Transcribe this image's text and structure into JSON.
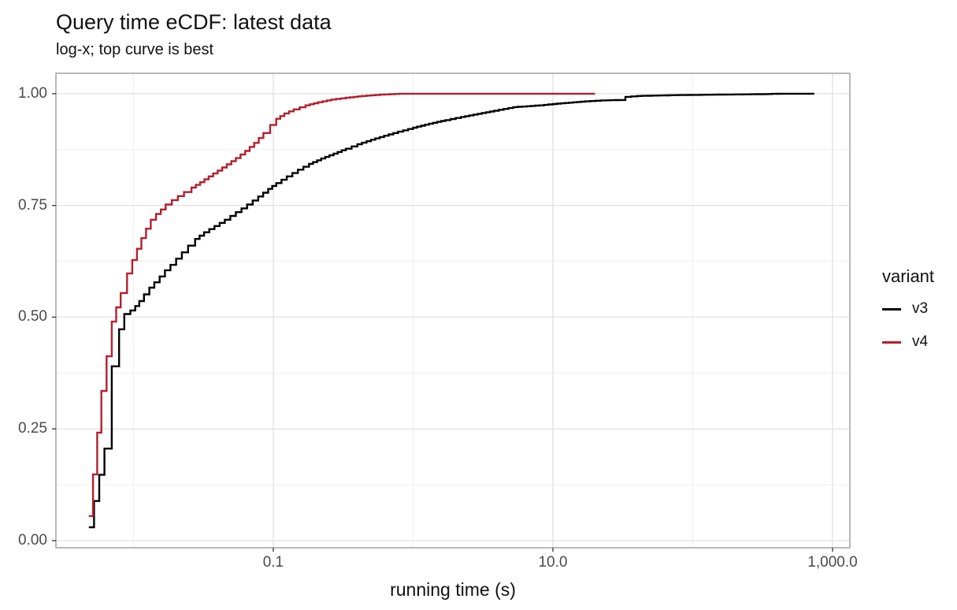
{
  "title": "Query time eCDF: latest data",
  "subtitle": "log-x; top curve is best",
  "x_axis": {
    "label": "running time (s)",
    "scale": "log10",
    "major_ticks": [
      {
        "value": 0.1,
        "label": "0.1"
      },
      {
        "value": 10,
        "label": "10.0"
      },
      {
        "value": 1000,
        "label": "1,000.0"
      }
    ],
    "minor_ticks": [
      0.01,
      1,
      100
    ],
    "range": [
      0.00279,
      1330
    ]
  },
  "y_axis": {
    "label": "",
    "major_ticks": [
      {
        "value": 0.0,
        "label": "0.00"
      },
      {
        "value": 0.25,
        "label": "0.25"
      },
      {
        "value": 0.5,
        "label": "0.50"
      },
      {
        "value": 0.75,
        "label": "0.75"
      },
      {
        "value": 1.0,
        "label": "1.00"
      }
    ],
    "minor_ticks": [
      0.125,
      0.375,
      0.625,
      0.875
    ],
    "range": [
      -0.0159,
      1.0457
    ]
  },
  "legend": {
    "title": "variant",
    "items": [
      {
        "label": "v3",
        "color": "#000000"
      },
      {
        "label": "v4",
        "color": "#b2202e"
      }
    ]
  },
  "style_colors": {
    "grid_major": "#e3e3e3",
    "grid_minor": "#efefef",
    "panel_border": "#9b9b9b",
    "tick_mark": "#333333",
    "v3_line": "#000000",
    "v4_line": "#b2202e"
  },
  "chart_data": {
    "type": "line",
    "subtype": "ecdf_step",
    "title": "Query time eCDF: latest data",
    "subtitle": "log-x; top curve is best",
    "xlabel": "running time (s)",
    "ylabel": "",
    "x_scale": "log10",
    "xlim": [
      0.00279,
      1330
    ],
    "ylim": [
      -0.0159,
      1.0457
    ],
    "grid": true,
    "legend_position": "right",
    "legend_title": "variant",
    "series": [
      {
        "name": "v3",
        "color": "#000000",
        "points": [
          [
            0.0048,
            0.03
          ],
          [
            0.0062,
            0.206
          ],
          [
            0.007,
            0.39
          ],
          [
            0.0079,
            0.473
          ],
          [
            0.0086,
            0.507
          ],
          [
            0.0095,
            0.515
          ],
          [
            0.0103,
            0.525
          ],
          [
            0.011,
            0.536
          ],
          [
            0.0119,
            0.551
          ],
          [
            0.013,
            0.566
          ],
          [
            0.0141,
            0.578
          ],
          [
            0.0154,
            0.591
          ],
          [
            0.0168,
            0.605
          ],
          [
            0.0184,
            0.617
          ],
          [
            0.0202,
            0.631
          ],
          [
            0.0222,
            0.645
          ],
          [
            0.0246,
            0.66
          ],
          [
            0.0276,
            0.675
          ],
          [
            0.032,
            0.69
          ],
          [
            0.038,
            0.704
          ],
          [
            0.045,
            0.718
          ],
          [
            0.054,
            0.735
          ],
          [
            0.065,
            0.752
          ],
          [
            0.078,
            0.77
          ],
          [
            0.092,
            0.787
          ],
          [
            0.105,
            0.8
          ],
          [
            0.125,
            0.815
          ],
          [
            0.15,
            0.83
          ],
          [
            0.18,
            0.843
          ],
          [
            0.22,
            0.855
          ],
          [
            0.27,
            0.866
          ],
          [
            0.33,
            0.877
          ],
          [
            0.4,
            0.887
          ],
          [
            0.5,
            0.897
          ],
          [
            0.62,
            0.906
          ],
          [
            0.78,
            0.915
          ],
          [
            1.0,
            0.924
          ],
          [
            1.3,
            0.933
          ],
          [
            1.7,
            0.941
          ],
          [
            2.2,
            0.948
          ],
          [
            2.9,
            0.955
          ],
          [
            3.8,
            0.962
          ],
          [
            5.2,
            0.97
          ],
          [
            6.5,
            0.972
          ],
          [
            8.0,
            0.974
          ],
          [
            10.0,
            0.977
          ],
          [
            13.0,
            0.98
          ],
          [
            17.0,
            0.983
          ],
          [
            22.0,
            0.985
          ],
          [
            30.0,
            0.986
          ],
          [
            33.0,
            0.993
          ],
          [
            40.0,
            0.995
          ],
          [
            55.0,
            0.996
          ],
          [
            80.0,
            0.997
          ],
          [
            150.0,
            0.998
          ],
          [
            300.0,
            0.999
          ],
          [
            420.0,
            1.0
          ],
          [
            740.0,
            1.0
          ]
        ]
      },
      {
        "name": "v4",
        "color": "#b2202e",
        "points": [
          [
            0.0048,
            0.055
          ],
          [
            0.0059,
            0.335
          ],
          [
            0.007,
            0.49
          ],
          [
            0.0081,
            0.554
          ],
          [
            0.009,
            0.598
          ],
          [
            0.0098,
            0.628
          ],
          [
            0.0106,
            0.653
          ],
          [
            0.0114,
            0.677
          ],
          [
            0.0123,
            0.698
          ],
          [
            0.0133,
            0.718
          ],
          [
            0.0145,
            0.731
          ],
          [
            0.0157,
            0.741
          ],
          [
            0.017,
            0.752
          ],
          [
            0.0188,
            0.762
          ],
          [
            0.0208,
            0.771
          ],
          [
            0.023,
            0.78
          ],
          [
            0.026,
            0.79
          ],
          [
            0.03,
            0.802
          ],
          [
            0.0345,
            0.815
          ],
          [
            0.04,
            0.828
          ],
          [
            0.0465,
            0.842
          ],
          [
            0.054,
            0.856
          ],
          [
            0.063,
            0.872
          ],
          [
            0.073,
            0.89
          ],
          [
            0.085,
            0.912
          ],
          [
            0.095,
            0.93
          ],
          [
            0.105,
            0.944
          ],
          [
            0.12,
            0.956
          ],
          [
            0.14,
            0.965
          ],
          [
            0.17,
            0.974
          ],
          [
            0.21,
            0.981
          ],
          [
            0.26,
            0.987
          ],
          [
            0.33,
            0.991
          ],
          [
            0.43,
            0.995
          ],
          [
            0.58,
            0.998
          ],
          [
            0.8,
            1.0
          ],
          [
            20.0,
            1.0
          ]
        ]
      }
    ]
  }
}
